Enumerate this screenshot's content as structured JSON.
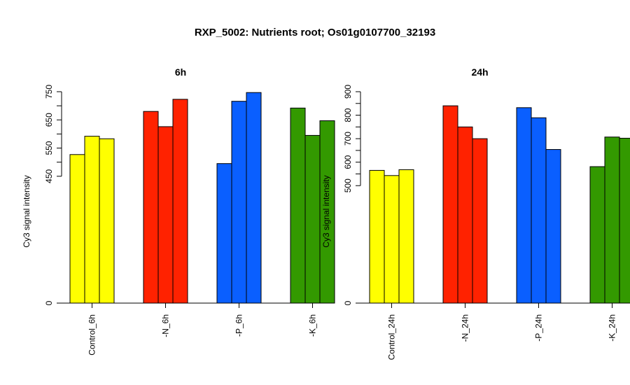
{
  "figure_title": "RXP_5002: Nutrients root; Os01g0107700_32193",
  "chart_data": [
    {
      "type": "bar",
      "title": "6h",
      "xlabel": "",
      "ylabel": "Cy3 signal intensity",
      "ylim": [
        0,
        750
      ],
      "y_ticks": [
        0,
        450,
        550,
        650,
        750
      ],
      "categories": [
        "Control_6h",
        "-N_6h",
        "-P_6h",
        "-K_6h"
      ],
      "group_colors": [
        "#ffff00",
        "#ff2200",
        "#0a5fff",
        "#339900"
      ],
      "replicates": [
        [
          527,
          592,
          583
        ],
        [
          680,
          626,
          723
        ],
        [
          495,
          716,
          747
        ],
        [
          692,
          595,
          647
        ]
      ],
      "grid": false,
      "legend": "none"
    },
    {
      "type": "bar",
      "title": "24h",
      "xlabel": "",
      "ylabel": "Cy3 signal intensity",
      "ylim": [
        0,
        900
      ],
      "y_ticks": [
        0,
        500,
        600,
        700,
        800,
        900
      ],
      "categories": [
        "Control_24h",
        "-N_24h",
        "-P_24h",
        "-K_24h"
      ],
      "group_colors": [
        "#ffff00",
        "#ff2200",
        "#0a5fff",
        "#339900"
      ],
      "replicates": [
        [
          565,
          543,
          568
        ],
        [
          840,
          750,
          700
        ],
        [
          832,
          789,
          654
        ],
        [
          581,
          707,
          702
        ]
      ],
      "grid": false,
      "legend": "none"
    }
  ]
}
